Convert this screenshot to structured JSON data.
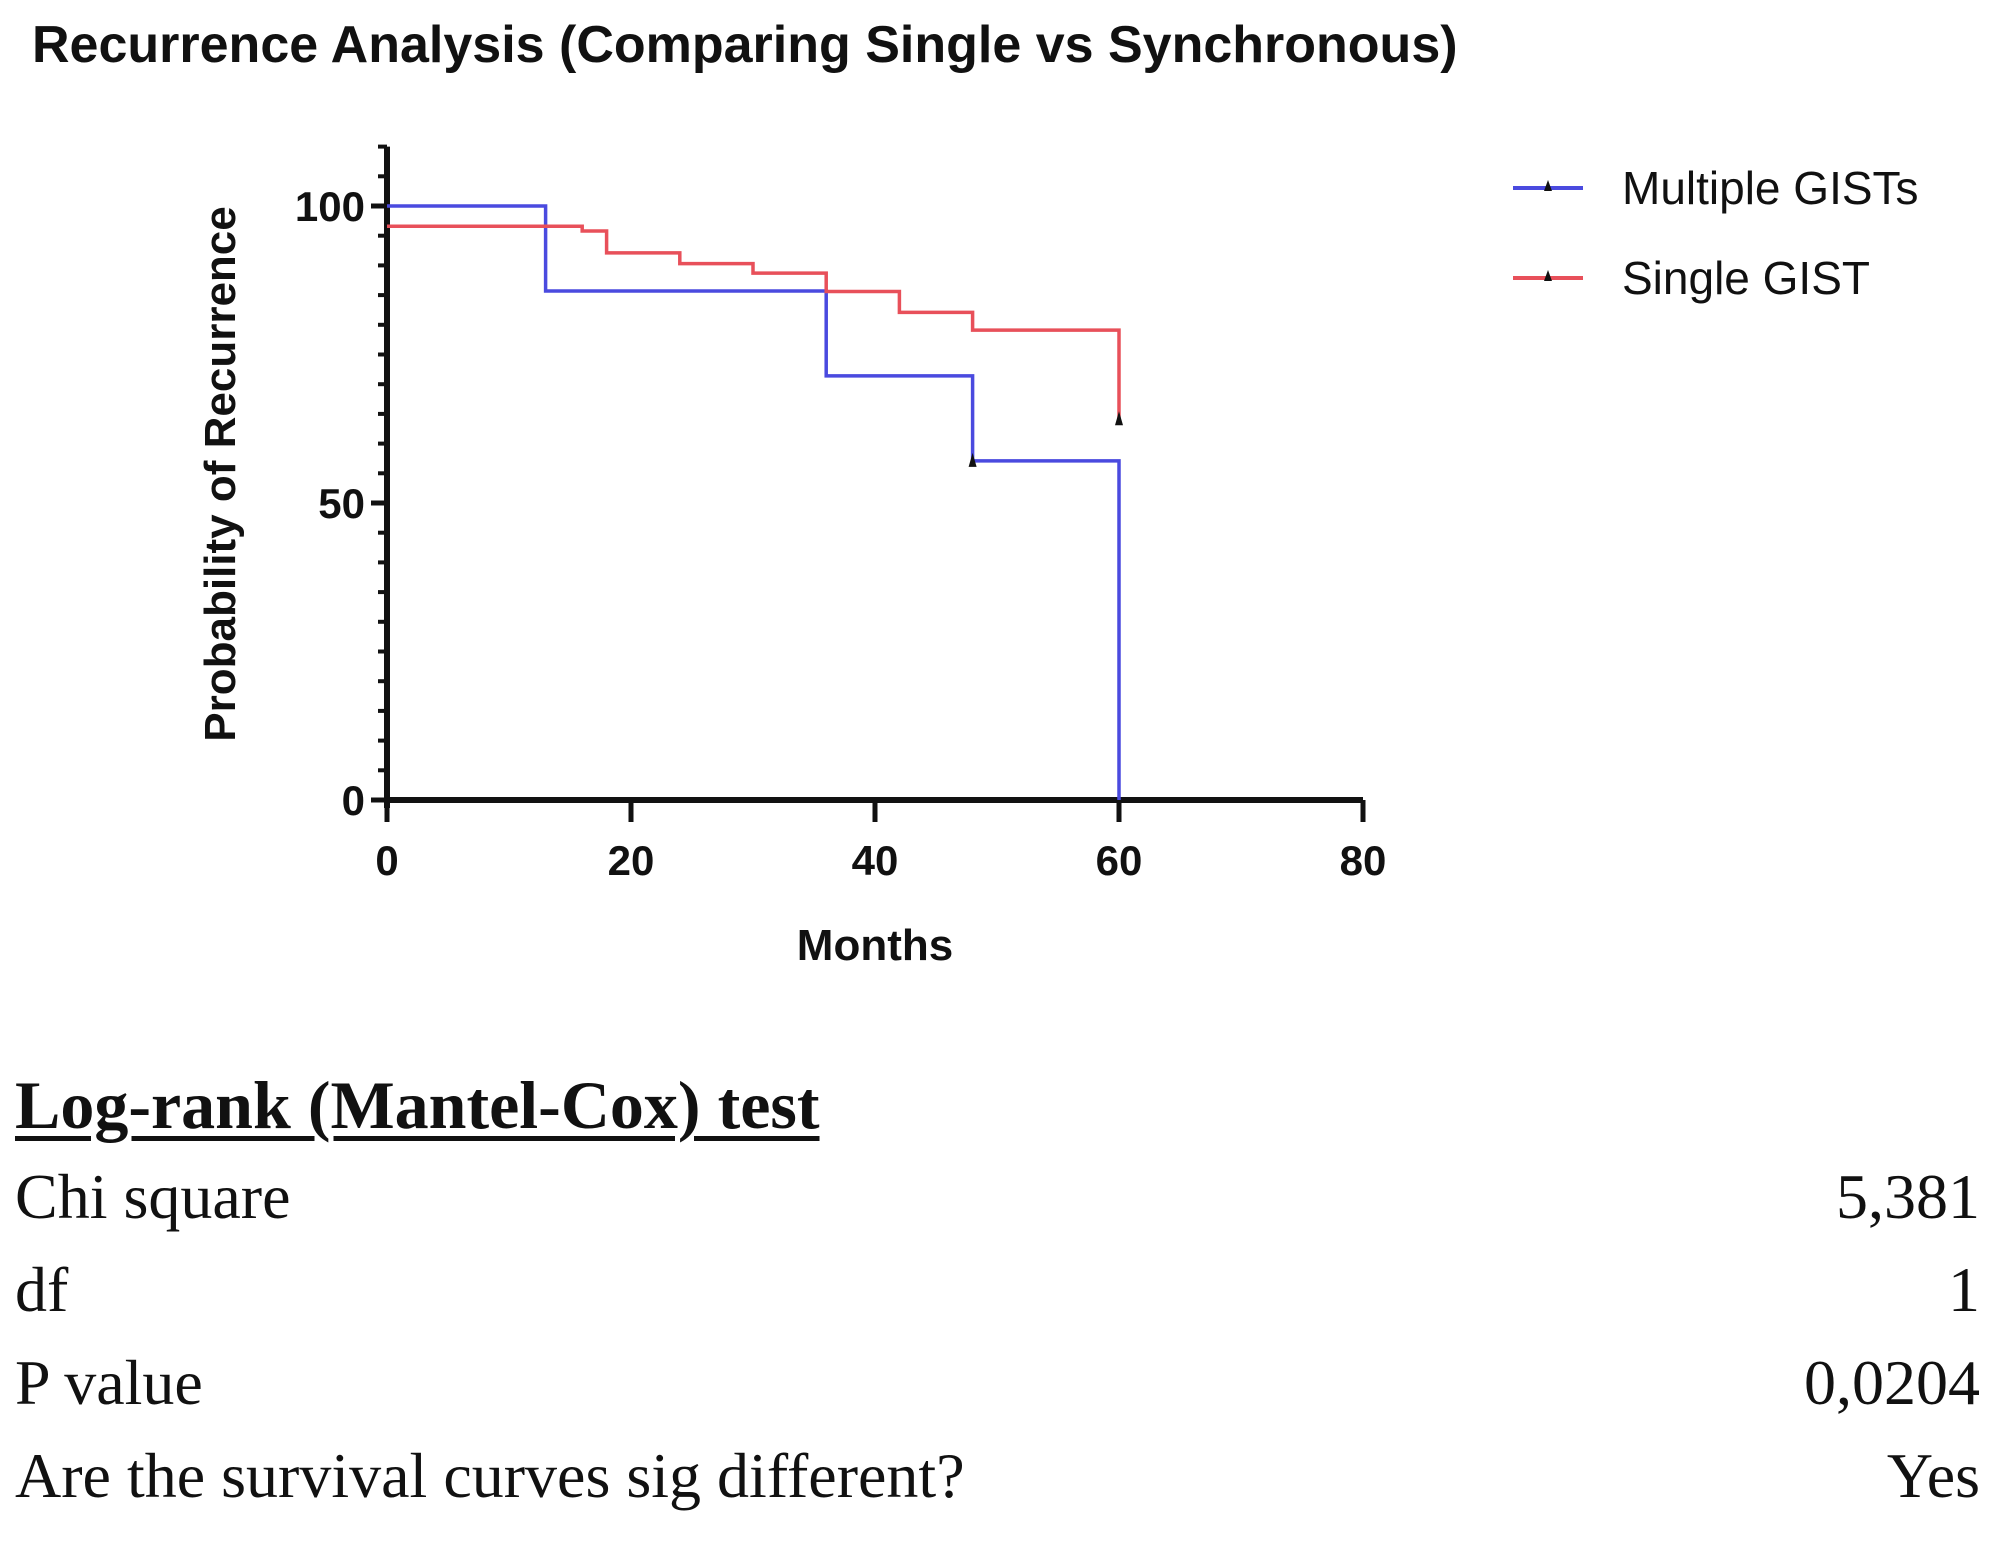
{
  "chart_data": {
    "type": "line",
    "subtype": "kaplan-meier step",
    "title": "Recurrence Analysis (Comparing Single vs Synchronous)",
    "xlabel": "Months",
    "ylabel": "Probability of  Recurrence",
    "xlim": [
      0,
      80
    ],
    "ylim": [
      0,
      110
    ],
    "xticks": [
      "0",
      "20",
      "40",
      "60",
      "80"
    ],
    "yticks": [
      "0",
      "50",
      "100"
    ],
    "grid": false,
    "legend_position": "top-right",
    "series": [
      {
        "name": "Multiple GISTs",
        "color": "#4a4adf",
        "x": [
          0,
          13,
          36,
          48,
          60
        ],
        "y": [
          100,
          85.7,
          71.4,
          57.1,
          0
        ],
        "end_x": 60,
        "censored": [
          {
            "x": 48,
            "y": 57.1
          }
        ]
      },
      {
        "name": "Single GIST",
        "color": "#e8505a",
        "x": [
          0,
          16,
          18,
          24,
          30,
          36,
          42,
          48,
          60
        ],
        "y": [
          96.6,
          95.8,
          92.1,
          90.3,
          88.7,
          85.6,
          82.1,
          79.1,
          64.1
        ],
        "end_x": 60,
        "censored": [
          {
            "x": 60,
            "y": 64.1
          }
        ]
      }
    ]
  },
  "stats": {
    "title": "Log-rank (Mantel-Cox) test",
    "rows": [
      {
        "label": "Chi square",
        "value": "5,381"
      },
      {
        "label": "df",
        "value": "1"
      },
      {
        "label": "P value",
        "value": "0,0204"
      },
      {
        "label": "Are the survival curves sig different?",
        "value": "Yes"
      }
    ]
  }
}
